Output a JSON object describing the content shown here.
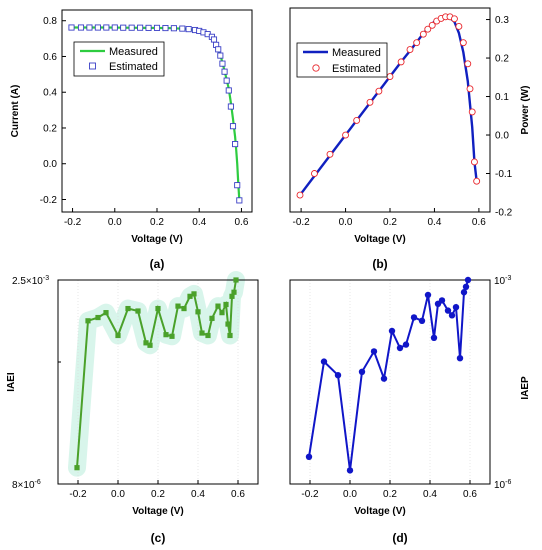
{
  "chart_data": [
    {
      "panel": "(a)",
      "type": "line",
      "xlabel": "Voltage (V)",
      "ylabel": "Current (A)",
      "xlim": [
        -0.25,
        0.65
      ],
      "ylim": [
        -0.27,
        0.86
      ],
      "xticks": [
        "-0.2",
        "0.0",
        "0.2",
        "0.4",
        "0.6"
      ],
      "xtick_values": [
        -0.2,
        0.0,
        0.2,
        0.4,
        0.6
      ],
      "yticks": [
        "-0.2",
        "0.0",
        "0.2",
        "0.4",
        "0.6",
        "0.8"
      ],
      "ytick_values": [
        -0.2,
        0.0,
        0.2,
        0.4,
        0.6,
        0.8
      ],
      "legend_position": "top-left",
      "series": [
        {
          "name": "Measured",
          "style": "line",
          "color": "#2ecc40",
          "x": [
            -0.205,
            -0.12,
            -0.04,
            0.05,
            0.15,
            0.25,
            0.33,
            0.38,
            0.42,
            0.45,
            0.48,
            0.5,
            0.52,
            0.54,
            0.55,
            0.56,
            0.57,
            0.575,
            0.58,
            0.585,
            0.59
          ],
          "y": [
            0.762,
            0.762,
            0.762,
            0.761,
            0.76,
            0.759,
            0.755,
            0.748,
            0.735,
            0.715,
            0.665,
            0.61,
            0.52,
            0.42,
            0.34,
            0.25,
            0.15,
            0.08,
            0.0,
            -0.11,
            -0.205
          ]
        },
        {
          "name": "Estimated",
          "style": "square-marker",
          "color": "#3a3fc6",
          "x": [
            -0.205,
            -0.16,
            -0.12,
            -0.08,
            -0.04,
            0.0,
            0.04,
            0.08,
            0.12,
            0.16,
            0.2,
            0.24,
            0.28,
            0.32,
            0.35,
            0.38,
            0.4,
            0.42,
            0.44,
            0.46,
            0.47,
            0.48,
            0.49,
            0.5,
            0.51,
            0.52,
            0.53,
            0.54,
            0.55,
            0.56,
            0.57,
            0.58,
            0.59
          ],
          "y": [
            0.762,
            0.762,
            0.762,
            0.762,
            0.762,
            0.762,
            0.761,
            0.761,
            0.761,
            0.76,
            0.76,
            0.759,
            0.758,
            0.756,
            0.753,
            0.748,
            0.743,
            0.735,
            0.725,
            0.71,
            0.695,
            0.665,
            0.64,
            0.605,
            0.56,
            0.515,
            0.465,
            0.41,
            0.32,
            0.21,
            0.11,
            -0.12,
            -0.205
          ]
        }
      ],
      "caption": "(a)"
    },
    {
      "panel": "(b)",
      "type": "line",
      "xlabel": "Voltage (V)",
      "ylabel": "Power (W)",
      "y_axis_side": "right",
      "xlim": [
        -0.25,
        0.65
      ],
      "ylim": [
        -0.2,
        0.33
      ],
      "xticks": [
        "-0.2",
        "0.0",
        "0.2",
        "0.4",
        "0.6"
      ],
      "xtick_values": [
        -0.2,
        0.0,
        0.2,
        0.4,
        0.6
      ],
      "yticks": [
        "-0.2",
        "-0.1",
        "0.0",
        "0.1",
        "0.2",
        "0.3"
      ],
      "ytick_values": [
        -0.2,
        -0.1,
        0.0,
        0.1,
        0.2,
        0.3
      ],
      "legend_position": "top-left",
      "series": [
        {
          "name": "Measured",
          "style": "line",
          "color": "#1020c0",
          "x": [
            -0.205,
            -0.15,
            -0.1,
            -0.05,
            0.0,
            0.05,
            0.1,
            0.15,
            0.2,
            0.25,
            0.3,
            0.35,
            0.4,
            0.43,
            0.45,
            0.47,
            0.49,
            0.51,
            0.53,
            0.55,
            0.57,
            0.58,
            0.59
          ],
          "y": [
            -0.156,
            -0.114,
            -0.076,
            -0.038,
            0.0,
            0.038,
            0.076,
            0.114,
            0.152,
            0.19,
            0.226,
            0.264,
            0.295,
            0.305,
            0.307,
            0.304,
            0.294,
            0.265,
            0.215,
            0.14,
            0.02,
            -0.07,
            -0.12
          ]
        },
        {
          "name": "Estimated",
          "style": "circle-marker",
          "color": "#e8262c",
          "x": [
            -0.205,
            -0.14,
            -0.07,
            0.0,
            0.05,
            0.11,
            0.15,
            0.2,
            0.25,
            0.29,
            0.32,
            0.35,
            0.37,
            0.39,
            0.41,
            0.43,
            0.45,
            0.47,
            0.49,
            0.51,
            0.53,
            0.55,
            0.56,
            0.57,
            0.58,
            0.59
          ],
          "y": [
            -0.156,
            -0.1,
            -0.05,
            0.0,
            0.038,
            0.085,
            0.114,
            0.152,
            0.19,
            0.222,
            0.24,
            0.262,
            0.275,
            0.285,
            0.296,
            0.303,
            0.307,
            0.307,
            0.302,
            0.282,
            0.24,
            0.185,
            0.12,
            0.06,
            -0.07,
            -0.12
          ]
        }
      ],
      "caption": "(b)"
    },
    {
      "panel": "(c)",
      "type": "line",
      "xlabel": "Voltage (V)",
      "ylabel": "IAEI",
      "y_scale": "log",
      "xlim": [
        -0.3,
        0.7
      ],
      "ylim_log10": [
        -5.1,
        -2.6
      ],
      "xticks": [
        "-0.2",
        "0.0",
        "0.2",
        "0.4",
        "0.6"
      ],
      "xtick_values": [
        -0.2,
        0.0,
        0.2,
        0.4,
        0.6
      ],
      "ytick_labels": [
        {
          "mantissa": "8×10",
          "exponent": "-6",
          "log10": -5.1
        },
        {
          "mantissa": "2.5×10",
          "exponent": "-3",
          "log10": -2.6
        }
      ],
      "series": [
        {
          "name": "",
          "color": "#4aa12a",
          "x": [
            -0.205,
            -0.15,
            -0.1,
            -0.06,
            0.0,
            0.05,
            0.1,
            0.14,
            0.16,
            0.2,
            0.24,
            0.27,
            0.3,
            0.33,
            0.36,
            0.38,
            0.4,
            0.42,
            0.45,
            0.47,
            0.5,
            0.52,
            0.54,
            0.55,
            0.56,
            0.57,
            0.58,
            0.59
          ],
          "y_log10": [
            -4.9,
            -3.1,
            -3.06,
            -3.0,
            -3.28,
            -2.95,
            -2.98,
            -3.37,
            -3.4,
            -2.95,
            -3.27,
            -3.29,
            -2.92,
            -2.95,
            -2.8,
            -2.77,
            -2.99,
            -3.25,
            -3.28,
            -3.07,
            -2.92,
            -3.0,
            -2.9,
            -3.14,
            -3.28,
            -2.8,
            -2.75,
            -2.6
          ]
        }
      ],
      "caption": "(c)"
    },
    {
      "panel": "(d)",
      "type": "line",
      "xlabel": "Voltage (V)",
      "ylabel": "IAEP",
      "y_scale": "log",
      "y_axis_side": "right",
      "xlim": [
        -0.3,
        0.7
      ],
      "ylim_log10": [
        -6,
        -3
      ],
      "xticks": [
        "-0.2",
        "0.0",
        "0.2",
        "0.4",
        "0.6"
      ],
      "xtick_values": [
        -0.2,
        0.0,
        0.2,
        0.4,
        0.6
      ],
      "ytick_labels": [
        {
          "mantissa": "10",
          "exponent": "-6",
          "log10": -6
        },
        {
          "mantissa": "10",
          "exponent": "-3",
          "log10": -3
        }
      ],
      "series": [
        {
          "name": "",
          "color": "#1016c8",
          "x": [
            -0.205,
            -0.13,
            -0.06,
            0.0,
            0.06,
            0.12,
            0.17,
            0.21,
            0.25,
            0.28,
            0.32,
            0.36,
            0.39,
            0.42,
            0.44,
            0.46,
            0.49,
            0.51,
            0.53,
            0.55,
            0.57,
            0.58,
            0.59
          ],
          "y_log10": [
            -5.6,
            -4.2,
            -4.4,
            -5.8,
            -4.35,
            -4.05,
            -4.45,
            -3.75,
            -4.0,
            -3.95,
            -3.55,
            -3.6,
            -3.22,
            -3.85,
            -3.35,
            -3.3,
            -3.45,
            -3.52,
            -3.4,
            -4.15,
            -3.18,
            -3.1,
            -3.0
          ]
        }
      ],
      "caption": "(d)"
    }
  ]
}
